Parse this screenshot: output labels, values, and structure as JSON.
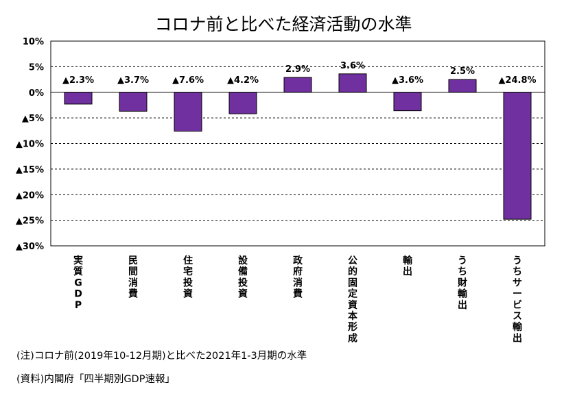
{
  "chart_data": {
    "type": "bar",
    "title": "コロナ前と比べた経済活動の水準",
    "categories": [
      "実質GDP",
      "民間消費",
      "住宅投資",
      "設備投資",
      "政府消費",
      "公的固定資本形成",
      "輸出",
      "うち財輸出",
      "うちサービス輸出"
    ],
    "values": [
      -2.3,
      -3.7,
      -7.6,
      -4.2,
      2.9,
      3.6,
      -3.6,
      2.5,
      -24.8
    ],
    "value_labels": [
      "▲2.3%",
      "▲3.7%",
      "▲7.6%",
      "▲4.2%",
      "2.9%",
      "3.6%",
      "▲3.6%",
      "2.5%",
      "▲24.8%"
    ],
    "ylim": [
      -30,
      10
    ],
    "yticks": [
      10,
      5,
      0,
      -5,
      -10,
      -15,
      -20,
      -25,
      -30
    ],
    "ytick_labels": [
      "10%",
      "5%",
      "0%",
      "▲5%",
      "▲10%",
      "▲15%",
      "▲20%",
      "▲25%",
      "▲30%"
    ],
    "bar_color": "#7030a0",
    "grid": true,
    "xlabel": "",
    "ylabel": ""
  },
  "notes": {
    "note": "(注)コロナ前(2019年10-12月期)と比べた2021年1-3月期の水準",
    "source": "(資料)内閣府「四半期別GDP速報」"
  }
}
